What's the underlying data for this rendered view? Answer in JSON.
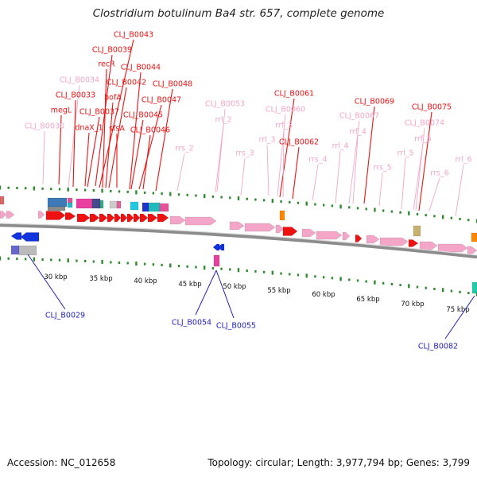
{
  "title": "Clostridium botulinum Ba4 str. 657, complete genome",
  "footer": {
    "accession": "Accession: NC_012658",
    "summary": "Topology: circular; Length: 3,977,794 bp; Genes: 3,799"
  },
  "colors": {
    "cds": "#ee1111",
    "rna": "#f4a6c8",
    "backbone": "#8c8c8c",
    "tick": "#2f8a2f",
    "callout": "#2222bb"
  },
  "ticks": [
    {
      "label": "30 kbp",
      "kbp": 30
    },
    {
      "label": "35 kbp",
      "kbp": 35
    },
    {
      "label": "40 kbp",
      "kbp": 40
    },
    {
      "label": "45 kbp",
      "kbp": 45
    },
    {
      "label": "50 kbp",
      "kbp": 50
    },
    {
      "label": "55 kbp",
      "kbp": 55
    },
    {
      "label": "60 kbp",
      "kbp": 60
    },
    {
      "label": "65 kbp",
      "kbp": 65
    },
    {
      "label": "70 kbp",
      "kbp": 70
    },
    {
      "label": "75 kbp",
      "kbp": 75
    }
  ],
  "labels": [
    {
      "text": "CLJ_B0043",
      "type": "cds"
    },
    {
      "text": "CLJ_B0039",
      "type": "cds"
    },
    {
      "text": "recR",
      "type": "cds"
    },
    {
      "text": "CLJ_B0044",
      "type": "cds"
    },
    {
      "text": "CLJ_B0034",
      "type": "rna"
    },
    {
      "text": "CLJ_B0042",
      "type": "cds"
    },
    {
      "text": "CLJ_B0048",
      "type": "cds"
    },
    {
      "text": "CLJ_B0033",
      "type": "cds"
    },
    {
      "text": "bofA",
      "type": "cds"
    },
    {
      "text": "CLJ_B0047",
      "type": "cds"
    },
    {
      "text": "CLJ_B0053",
      "type": "rna"
    },
    {
      "text": "CLJ_B0061",
      "type": "cds"
    },
    {
      "text": "megL",
      "type": "cds"
    },
    {
      "text": "CLJ_B0037",
      "type": "cds"
    },
    {
      "text": "CLJ_B0045",
      "type": "cds"
    },
    {
      "text": "CLJ_B0060",
      "type": "rna"
    },
    {
      "text": "CLJ_B0069",
      "type": "cds"
    },
    {
      "text": "CLJ_B0075",
      "type": "cds"
    },
    {
      "text": "rrl_2",
      "type": "rna"
    },
    {
      "text": "CLJ_B0067",
      "type": "rna"
    },
    {
      "text": "CLJ_B0030",
      "type": "rna"
    },
    {
      "text": "dnaX_1",
      "type": "cds"
    },
    {
      "text": "sfsA",
      "type": "cds"
    },
    {
      "text": "CLJ_B0046",
      "type": "cds"
    },
    {
      "text": "rrf_3",
      "type": "rna"
    },
    {
      "text": "CLJ_B0074",
      "type": "rna"
    },
    {
      "text": "rrf_4",
      "type": "rna"
    },
    {
      "text": "rrs_2",
      "type": "rna"
    },
    {
      "text": "rrl_3",
      "type": "rna"
    },
    {
      "text": "CLJ_B0062",
      "type": "cds"
    },
    {
      "text": "rrf_5",
      "type": "rna"
    },
    {
      "text": "rrs_3",
      "type": "rna"
    },
    {
      "text": "rrl_4",
      "type": "rna"
    },
    {
      "text": "rrl_5",
      "type": "rna"
    },
    {
      "text": "rrl_6",
      "type": "rna"
    },
    {
      "text": "rrs_4",
      "type": "rna"
    },
    {
      "text": "rrs_5",
      "type": "rna"
    },
    {
      "text": "rrs_6",
      "type": "rna"
    }
  ],
  "callouts": [
    {
      "text": "CLJ_B0029"
    },
    {
      "text": "CLJ_B0054"
    },
    {
      "text": "CLJ_B0055"
    },
    {
      "text": "CLJ_B0082"
    }
  ]
}
